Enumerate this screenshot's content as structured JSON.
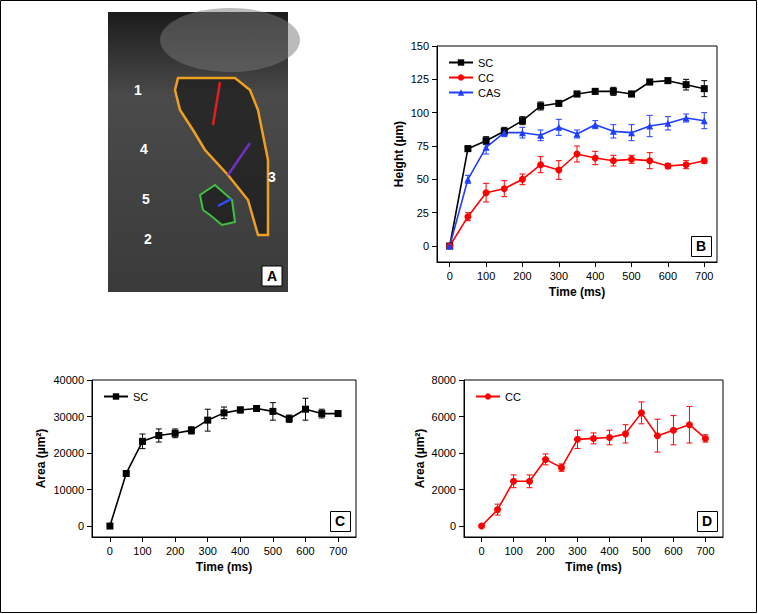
{
  "panel_a": {
    "letter": "A",
    "labels": [
      "1",
      "2",
      "3",
      "4",
      "5"
    ]
  },
  "chart_data": [
    {
      "type": "line",
      "panel": "B",
      "legend": "upper left",
      "grid": false,
      "x_label": "Time (ms)",
      "y_label": "Height (µm)",
      "x": [
        0,
        50,
        100,
        150,
        200,
        250,
        300,
        350,
        400,
        450,
        500,
        550,
        600,
        650,
        700
      ],
      "xlim": [
        -35,
        735
      ],
      "xticks": [
        0,
        100,
        200,
        300,
        400,
        500,
        600,
        700
      ],
      "ylim": [
        -12,
        150
      ],
      "yticks": [
        0,
        25,
        50,
        75,
        100,
        125,
        150
      ],
      "series": [
        {
          "name": "SC",
          "color": "#000000",
          "marker": "square",
          "values": [
            0,
            73,
            79,
            86,
            94,
            105,
            107,
            114,
            116,
            116,
            114,
            123,
            124,
            121,
            118
          ],
          "errors": [
            0,
            2,
            3,
            3,
            3,
            3,
            2,
            2,
            2,
            3,
            2,
            2,
            2,
            4,
            6
          ]
        },
        {
          "name": "CC",
          "color": "#ff0000",
          "marker": "circle",
          "values": [
            0,
            22,
            40,
            43,
            50,
            61,
            57,
            69,
            66,
            64,
            65,
            64,
            60,
            61,
            64
          ],
          "errors": [
            0,
            3,
            7,
            6,
            4,
            6,
            7,
            6,
            5,
            4,
            3,
            6,
            2,
            3,
            2
          ]
        },
        {
          "name": "CAS",
          "color": "#1f3fff",
          "marker": "triangle",
          "values": [
            0,
            50,
            74,
            85,
            85,
            83,
            89,
            84,
            91,
            86,
            85,
            90,
            92,
            96,
            94
          ],
          "errors": [
            0,
            3,
            5,
            3,
            4,
            4,
            6,
            3,
            3,
            5,
            6,
            8,
            5,
            3,
            6
          ]
        }
      ]
    },
    {
      "type": "line",
      "panel": "C",
      "legend": "upper left",
      "grid": false,
      "x_label": "Time (ms)",
      "y_label": "Area (µm²)",
      "x": [
        0,
        50,
        100,
        150,
        200,
        250,
        300,
        350,
        400,
        450,
        500,
        550,
        600,
        650,
        700
      ],
      "xlim": [
        -55,
        755
      ],
      "xticks": [
        0,
        100,
        200,
        300,
        400,
        500,
        600,
        700
      ],
      "ylim": [
        -3000,
        40000
      ],
      "yticks": [
        0,
        10000,
        20000,
        30000,
        40000
      ],
      "series": [
        {
          "name": "SC",
          "color": "#000000",
          "marker": "square",
          "values": [
            0,
            14400,
            23200,
            24800,
            25400,
            26200,
            29000,
            31000,
            31800,
            32200,
            31400,
            29400,
            32000,
            30800,
            30800
          ],
          "errors": [
            0,
            300,
            2000,
            1800,
            1200,
            1000,
            3000,
            1600,
            800,
            600,
            2400,
            1000,
            3000,
            1200,
            800
          ]
        }
      ]
    },
    {
      "type": "line",
      "panel": "D",
      "legend": "upper left",
      "grid": false,
      "x_label": "Time (ms)",
      "y_label": "Area (µm²)",
      "x": [
        0,
        50,
        100,
        150,
        200,
        250,
        300,
        350,
        400,
        450,
        500,
        550,
        600,
        650,
        700
      ],
      "xlim": [
        -55,
        755
      ],
      "xticks": [
        0,
        100,
        200,
        300,
        400,
        500,
        600,
        700
      ],
      "ylim": [
        -600,
        8000
      ],
      "yticks": [
        0,
        2000,
        4000,
        6000,
        8000
      ],
      "series": [
        {
          "name": "CC",
          "color": "#ff0000",
          "marker": "circle",
          "values": [
            0,
            900,
            2450,
            2450,
            3650,
            3200,
            4750,
            4800,
            4850,
            5050,
            6200,
            4950,
            5250,
            5550,
            4800
          ],
          "errors": [
            0,
            300,
            350,
            350,
            300,
            200,
            500,
            300,
            400,
            500,
            600,
            900,
            800,
            1000,
            200
          ]
        }
      ]
    }
  ]
}
